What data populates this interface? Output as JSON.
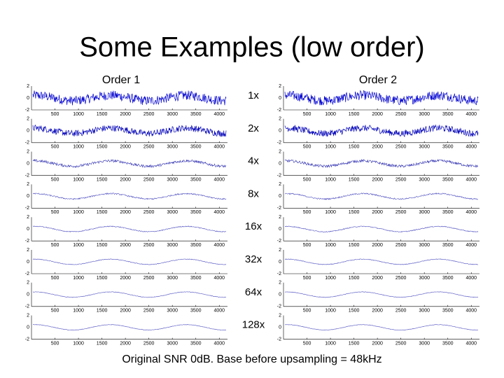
{
  "title": "Some Examples (low order)",
  "columns": [
    "Order 1",
    "Order 2"
  ],
  "rows": [
    "1x",
    "2x",
    "4x",
    "8x",
    "16x",
    "32x",
    "64x",
    "128x"
  ],
  "axes": {
    "yticks": [
      2,
      0,
      -2
    ],
    "xticks": [
      500,
      1000,
      1500,
      2000,
      2500,
      3000,
      3500,
      4000
    ]
  },
  "footer": "Original SNR 0dB. Base before upsampling = 48kHz"
}
